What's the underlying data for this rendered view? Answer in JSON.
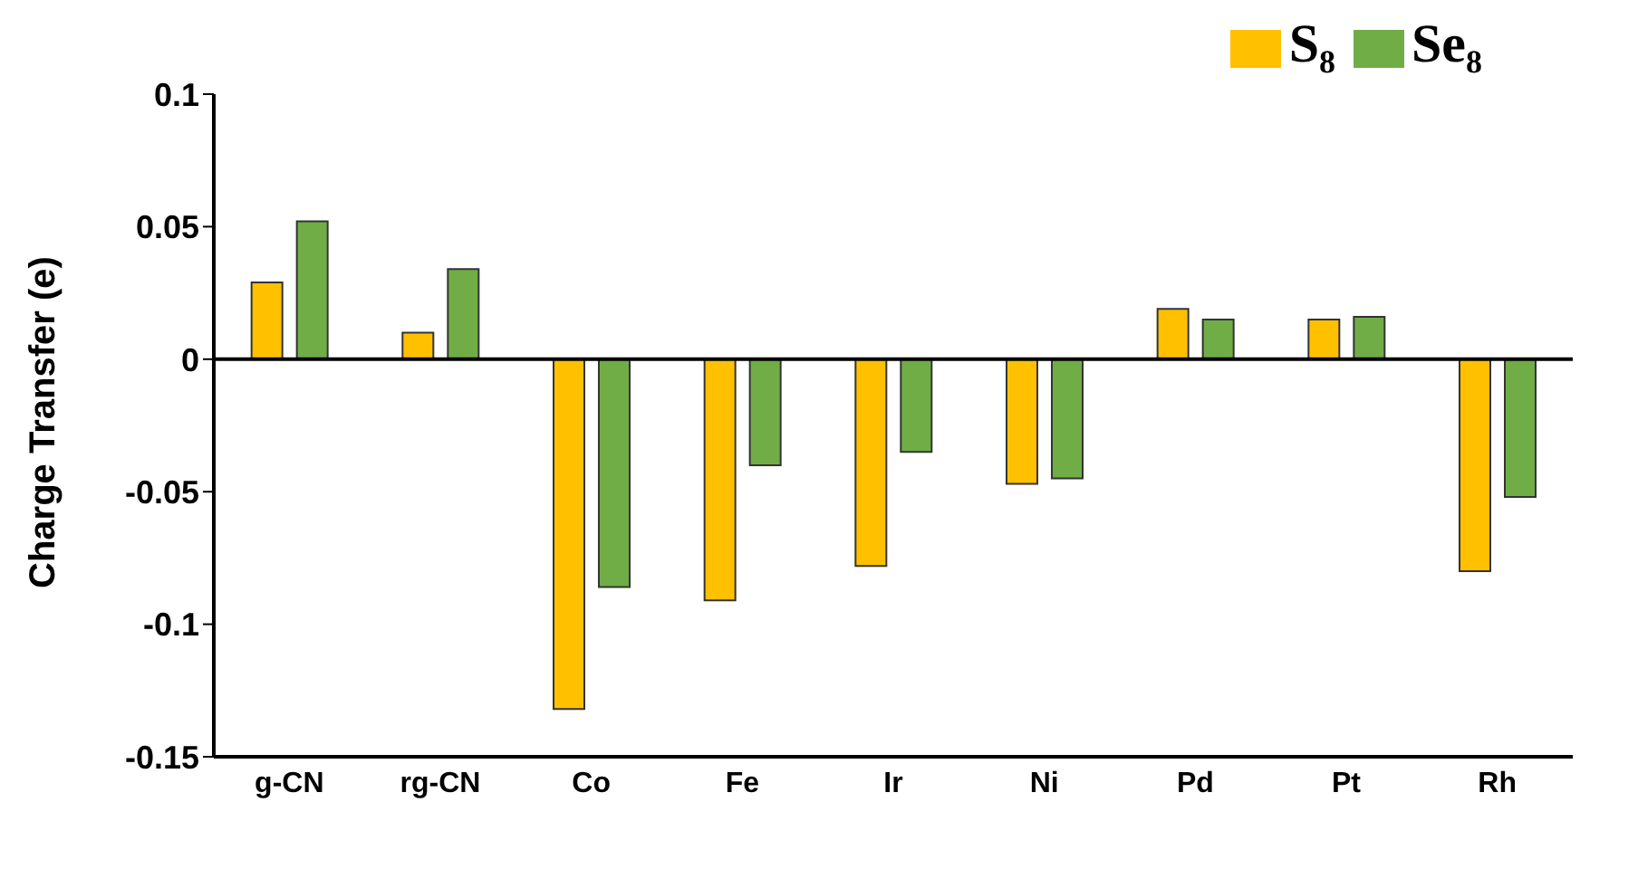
{
  "chart_data": {
    "type": "bar",
    "ylabel": "Charge Transfer (e)",
    "categories": [
      "g-CN",
      "rg-CN",
      "Co",
      "Fe",
      "Ir",
      "Ni",
      "Pd",
      "Pt",
      "Rh"
    ],
    "series": [
      {
        "name": "S₈",
        "color": "#ffc000",
        "values": [
          0.029,
          0.01,
          -0.132,
          -0.091,
          -0.078,
          -0.047,
          0.019,
          0.015,
          -0.08
        ]
      },
      {
        "name": "Se₈",
        "color": "#70ad47",
        "values": [
          0.052,
          0.034,
          -0.086,
          -0.04,
          -0.035,
          -0.045,
          0.015,
          0.016,
          -0.052
        ]
      }
    ],
    "ylim": [
      -0.15,
      0.1
    ],
    "yticks": [
      0.1,
      0.05,
      0,
      -0.05,
      -0.1,
      -0.15
    ],
    "ref_lines": [
      {
        "axis": "y",
        "value": 0,
        "color": "#000000"
      }
    ],
    "legend": "top right"
  }
}
